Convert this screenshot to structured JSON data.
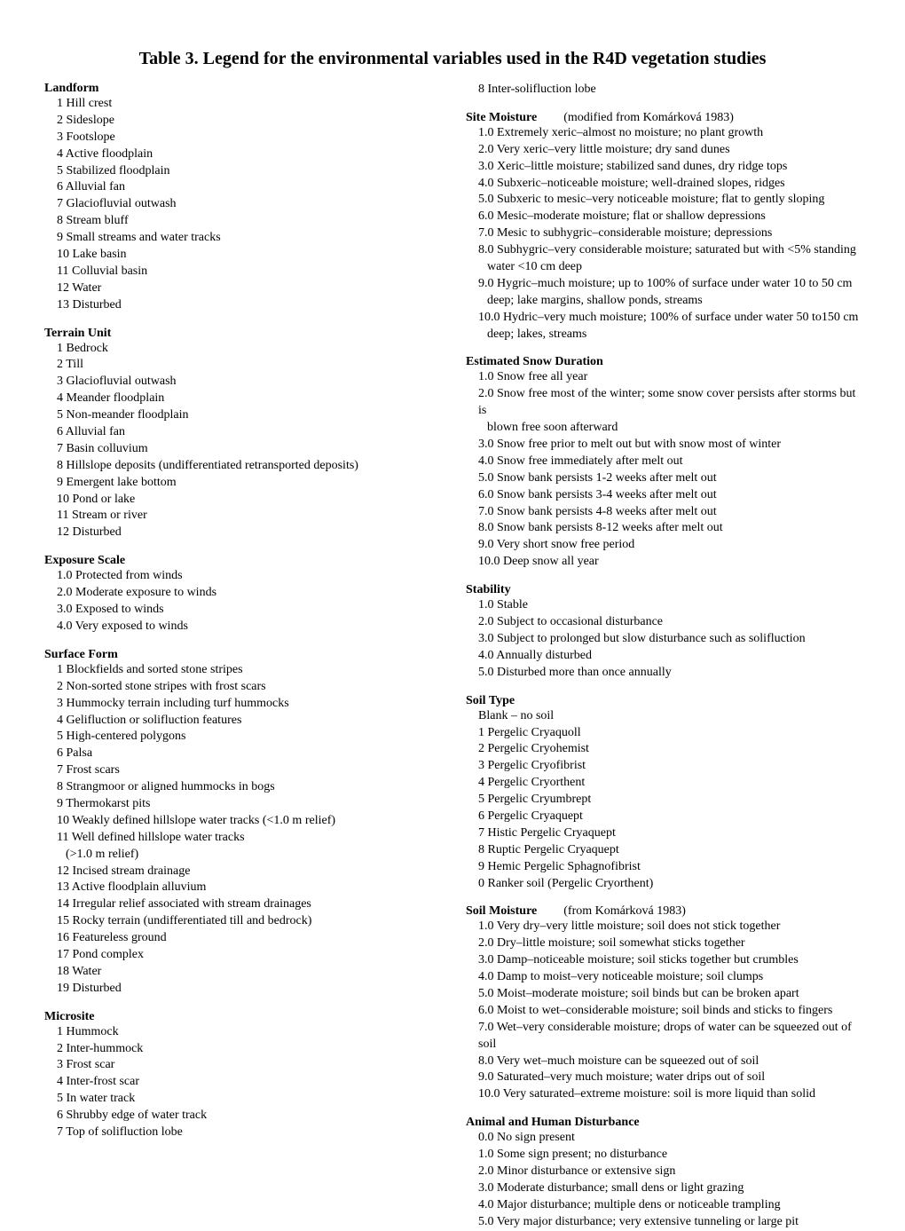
{
  "title": "Table 3. Legend for the environmental variables used in the R4D vegetation studies",
  "col1": {
    "landform": {
      "heading": "Landform",
      "items": [
        {
          "n": "1",
          "t": "Hill crest"
        },
        {
          "n": "2",
          "t": "Sideslope"
        },
        {
          "n": "3",
          "t": "Footslope"
        },
        {
          "n": "4",
          "t": "Active floodplain"
        },
        {
          "n": "5",
          "t": "Stabilized floodplain"
        },
        {
          "n": "6",
          "t": "Alluvial fan"
        },
        {
          "n": "7",
          "t": "Glaciofluvial outwash"
        },
        {
          "n": "8",
          "t": "Stream bluff"
        },
        {
          "n": "9",
          "t": "Small streams and water tracks"
        },
        {
          "n": "10",
          "t": "Lake basin"
        },
        {
          "n": "11",
          "t": "Colluvial basin"
        },
        {
          "n": "12",
          "t": "Water"
        },
        {
          "n": "13",
          "t": "Disturbed"
        }
      ]
    },
    "terrain": {
      "heading": "Terrain Unit",
      "items": [
        {
          "n": "1",
          "t": "Bedrock"
        },
        {
          "n": "2",
          "t": "Till"
        },
        {
          "n": "3",
          "t": "Glaciofluvial outwash"
        },
        {
          "n": "4",
          "t": "Meander floodplain"
        },
        {
          "n": "5",
          "t": "Non-meander floodplain"
        },
        {
          "n": "6",
          "t": "Alluvial fan"
        },
        {
          "n": "7",
          "t": "Basin colluvium"
        },
        {
          "n": "8",
          "t": "Hillslope deposits (undifferentiated retransported deposits)"
        },
        {
          "n": "9",
          "t": "Emergent lake bottom"
        },
        {
          "n": "10",
          "t": "Pond or lake"
        },
        {
          "n": "11",
          "t": "Stream or river"
        },
        {
          "n": "12",
          "t": "Disturbed"
        }
      ]
    },
    "exposure": {
      "heading": "Exposure Scale",
      "items": [
        {
          "n": "1.0",
          "t": "Protected from winds"
        },
        {
          "n": "2.0",
          "t": "Moderate exposure to winds"
        },
        {
          "n": "3.0",
          "t": "Exposed to winds"
        },
        {
          "n": "4.0",
          "t": "Very exposed to winds"
        }
      ]
    },
    "surface": {
      "heading": "Surface Form",
      "items": [
        {
          "n": "1",
          "t": "Blockfields and sorted stone stripes"
        },
        {
          "n": "2",
          "t": "Non-sorted stone stripes with frost scars"
        },
        {
          "n": "3",
          "t": "Hummocky terrain including turf hummocks"
        },
        {
          "n": "4",
          "t": "Gelifluction or solifluction features"
        },
        {
          "n": "5",
          "t": "High-centered polygons"
        },
        {
          "n": "6",
          "t": "Palsa"
        },
        {
          "n": "7",
          "t": "Frost scars"
        },
        {
          "n": "8",
          "t": "Strangmoor or aligned hummocks in bogs"
        },
        {
          "n": "9",
          "t": "Thermokarst pits"
        },
        {
          "n": "10",
          "t": "Weakly defined hillslope water tracks (<1.0 m relief)"
        },
        {
          "n": "11",
          "t": "Well defined hillslope water tracks"
        },
        {
          "n": "",
          "t": "(>1.0 m relief)",
          "cont": true
        },
        {
          "n": "12",
          "t": "Incised stream drainage"
        },
        {
          "n": "13",
          "t": "Active floodplain alluvium"
        },
        {
          "n": "14",
          "t": "Irregular relief associated with stream drainages"
        },
        {
          "n": "15",
          "t": "Rocky terrain (undifferentiated till and bedrock)"
        },
        {
          "n": "16",
          "t": "Featureless ground"
        },
        {
          "n": "17",
          "t": "Pond complex"
        },
        {
          "n": "18",
          "t": "Water"
        },
        {
          "n": "19",
          "t": "Disturbed"
        }
      ]
    },
    "microsite": {
      "heading": "Microsite",
      "items": [
        {
          "n": "1",
          "t": "Hummock"
        },
        {
          "n": "2",
          "t": "Inter-hummock"
        },
        {
          "n": "3",
          "t": "Frost scar"
        },
        {
          "n": "4",
          "t": "Inter-frost scar"
        },
        {
          "n": "5",
          "t": "In water track"
        },
        {
          "n": "6",
          "t": "Shrubby edge of water track"
        },
        {
          "n": "7",
          "t": "Top of solifluction lobe"
        }
      ]
    }
  },
  "col2": {
    "micrositeCont": {
      "n": "8",
      "t": "Inter-solifluction lobe"
    },
    "siteMoisture": {
      "heading": "Site Moisture",
      "subtitle": "(modified from Komárková 1983)",
      "items": [
        {
          "n": "1.0",
          "t": "Extremely xeric–almost no moisture; no plant growth"
        },
        {
          "n": "2.0",
          "t": "Very xeric–very little moisture; dry sand dunes"
        },
        {
          "n": "3.0",
          "t": "Xeric–little moisture; stabilized sand dunes, dry ridge tops"
        },
        {
          "n": "4.0",
          "t": "Subxeric–noticeable moisture; well-drained slopes, ridges"
        },
        {
          "n": "5.0",
          "t": "Subxeric to mesic–very noticeable moisture; flat to gently sloping"
        },
        {
          "n": "6.0",
          "t": "Mesic–moderate moisture; flat or shallow depressions"
        },
        {
          "n": "7.0",
          "t": "Mesic to subhygric–considerable moisture; depressions"
        },
        {
          "n": "8.0",
          "t": "Subhygric–very considerable moisture; saturated but with <5% standing"
        },
        {
          "n": "",
          "t": "water <10 cm deep",
          "cont": true
        },
        {
          "n": "9.0",
          "t": "Hygric–much moisture; up to 100% of surface under water 10 to 50 cm"
        },
        {
          "n": "",
          "t": "deep; lake margins, shallow ponds, streams",
          "cont": true
        },
        {
          "n": "10.0",
          "t": "Hydric–very much moisture; 100% of surface under water 50 to150 cm"
        },
        {
          "n": "",
          "t": "deep; lakes, streams",
          "cont": true
        }
      ]
    },
    "snow": {
      "heading": "Estimated Snow Duration",
      "items": [
        {
          "n": "1.0",
          "t": "Snow free all year"
        },
        {
          "n": "2.0",
          "t": "Snow free most of the winter; some snow cover persists after storms but is"
        },
        {
          "n": "",
          "t": "blown free soon afterward",
          "cont": true
        },
        {
          "n": "3.0",
          "t": "Snow free prior to melt out but with snow most of winter"
        },
        {
          "n": "4.0",
          "t": "Snow free immediately after melt out"
        },
        {
          "n": "5.0",
          "t": "Snow bank persists 1-2 weeks after melt out"
        },
        {
          "n": "6.0",
          "t": "Snow bank persists 3-4 weeks after melt out"
        },
        {
          "n": "7.0",
          "t": "Snow bank persists 4-8 weeks after melt out"
        },
        {
          "n": "8.0",
          "t": "Snow bank persists 8-12 weeks after melt out"
        },
        {
          "n": "9.0",
          "t": "Very short snow free period"
        },
        {
          "n": "10.0",
          "t": "Deep snow all year"
        }
      ]
    },
    "stability": {
      "heading": "Stability",
      "items": [
        {
          "n": "1.0",
          "t": "Stable"
        },
        {
          "n": "2.0",
          "t": "Subject to occasional disturbance"
        },
        {
          "n": "3.0",
          "t": "Subject to prolonged but slow disturbance such as solifluction"
        },
        {
          "n": "4.0",
          "t": "Annually disturbed"
        },
        {
          "n": "5.0",
          "t": "Disturbed more than once annually"
        }
      ]
    },
    "soilType": {
      "heading": "Soil Type",
      "items": [
        {
          "n": "",
          "t": "Blank – no soil"
        },
        {
          "n": "1",
          "t": "Pergelic Cryaquoll"
        },
        {
          "n": "2",
          "t": "Pergelic Cryohemist"
        },
        {
          "n": "3",
          "t": "Pergelic Cryofibrist"
        },
        {
          "n": "4",
          "t": "Pergelic Cryorthent"
        },
        {
          "n": "5",
          "t": "Pergelic Cryumbrept"
        },
        {
          "n": "6",
          "t": "Pergelic Cryaquept"
        },
        {
          "n": "7",
          "t": "Histic Pergelic Cryaquept"
        },
        {
          "n": "8",
          "t": "Ruptic Pergelic Cryaquept"
        },
        {
          "n": "9",
          "t": "Hemic Pergelic Sphagnofibrist"
        },
        {
          "n": "0",
          "t": "Ranker soil (Pergelic Cryorthent)"
        }
      ]
    },
    "soilMoisture": {
      "heading": "Soil Moisture",
      "subtitle": "(from Komárková 1983)",
      "items": [
        {
          "n": "1.0",
          "t": "Very dry–very little moisture; soil does not stick together"
        },
        {
          "n": "2.0",
          "t": "Dry–little moisture; soil somewhat sticks together"
        },
        {
          "n": "3.0",
          "t": "Damp–noticeable moisture; soil sticks together but crumbles"
        },
        {
          "n": "4.0",
          "t": "Damp to moist–very noticeable moisture; soil clumps"
        },
        {
          "n": "5.0",
          "t": "Moist–moderate moisture; soil binds but can be broken apart"
        },
        {
          "n": "6.0",
          "t": "Moist to wet–considerable moisture; soil binds and sticks to fingers"
        },
        {
          "n": "7.0",
          "t": "Wet–very considerable moisture; drops of water can be squeezed out of soil"
        },
        {
          "n": "8.0",
          "t": "Very wet–much moisture can be squeezed out of soil"
        },
        {
          "n": "9.0",
          "t": "Saturated–very much moisture; water drips out of soil"
        },
        {
          "n": "10.0",
          "t": "Very saturated–extreme moisture: soil is more liquid than solid"
        }
      ]
    },
    "disturbance": {
      "heading": "Animal and Human Disturbance",
      "items": [
        {
          "n": "0.0",
          "t": "No sign present"
        },
        {
          "n": "1.0",
          "t": "Some sign present; no disturbance"
        },
        {
          "n": "2.0",
          "t": "Minor disturbance or extensive sign"
        },
        {
          "n": "3.0",
          "t": "Moderate disturbance; small dens or light grazing"
        },
        {
          "n": "4.0",
          "t": "Major disturbance; multiple dens or noticeable trampling"
        },
        {
          "n": "5.0",
          "t": "Very major disturbance; very extensive tunneling or large pit"
        }
      ]
    }
  }
}
